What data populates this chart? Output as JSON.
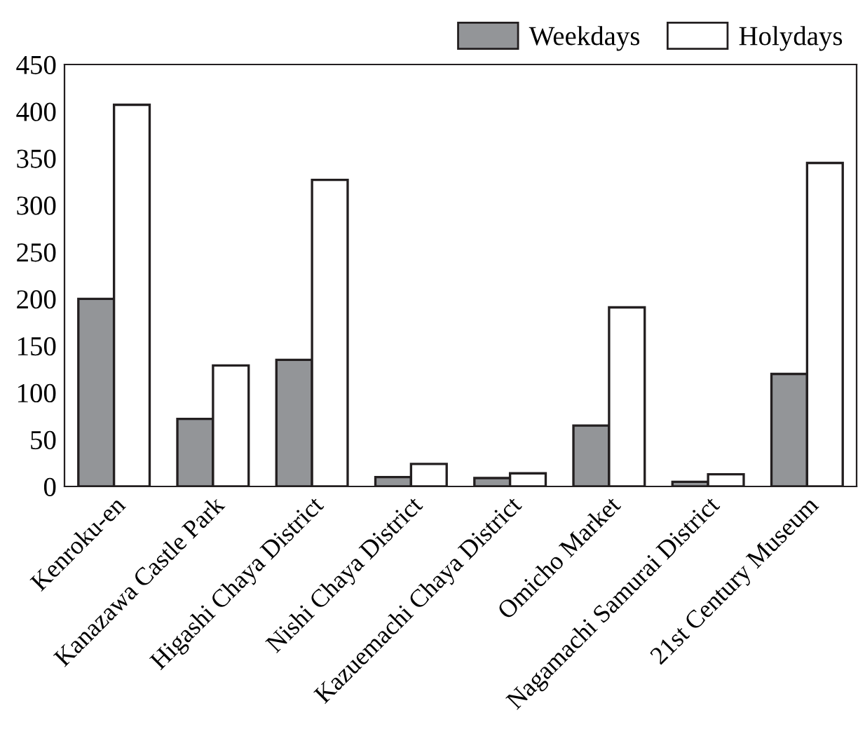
{
  "chart_data": {
    "type": "bar",
    "categories": [
      "Kenroku-en",
      "Kanazawa Castle Park",
      "Higashi Chaya District",
      "Nishi Chaya District",
      "Kazuemachi Chaya District",
      "Omicho Market",
      "Nagamachi Samurai District",
      "21st Century Museum"
    ],
    "series": [
      {
        "name": "Weekdays",
        "color": "#939598",
        "values": [
          200,
          72,
          135,
          10,
          9,
          65,
          5,
          120
        ]
      },
      {
        "name": "Holydays",
        "color": "#ffffff",
        "values": [
          407,
          129,
          327,
          24,
          14,
          191,
          13,
          345
        ]
      }
    ],
    "ylim": [
      0,
      450
    ],
    "yticks": [
      0,
      50,
      100,
      150,
      200,
      250,
      300,
      350,
      400,
      450
    ],
    "grid": false,
    "legend": "top right"
  }
}
